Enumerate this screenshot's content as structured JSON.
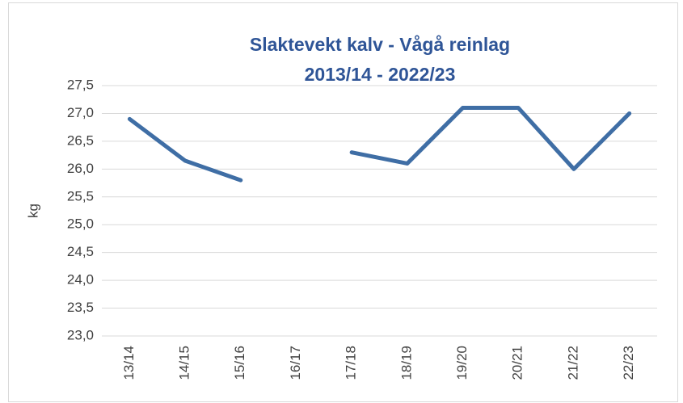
{
  "chart_data": {
    "type": "line",
    "title": [
      "Slaktevekt kalv - Vågå reinlag",
      "2013/14 - 2022/23"
    ],
    "ylabel": "kg",
    "categories": [
      "13/14",
      "14/15",
      "15/16",
      "16/17",
      "17/18",
      "18/19",
      "19/20",
      "20/21",
      "21/22",
      "22/23"
    ],
    "series": [
      {
        "color": "#3f6ea5",
        "values": [
          26.9,
          26.15,
          25.8,
          null,
          26.3,
          26.1,
          27.1,
          27.1,
          26.0,
          27.0
        ]
      }
    ],
    "ylim": [
      23,
      27.5
    ],
    "yticks": [
      {
        "value": 23,
        "label": "23,0"
      },
      {
        "value": 23.5,
        "label": "23,5"
      },
      {
        "value": 24,
        "label": "24,0"
      },
      {
        "value": 24.5,
        "label": "24,5"
      },
      {
        "value": 25,
        "label": "25,0"
      },
      {
        "value": 25.5,
        "label": "25,5"
      },
      {
        "value": 26,
        "label": "26,0"
      },
      {
        "value": 26.5,
        "label": "26,5"
      },
      {
        "value": 27,
        "label": "27,0"
      },
      {
        "value": 27.5,
        "label": "27,5"
      }
    ],
    "grid": true
  }
}
